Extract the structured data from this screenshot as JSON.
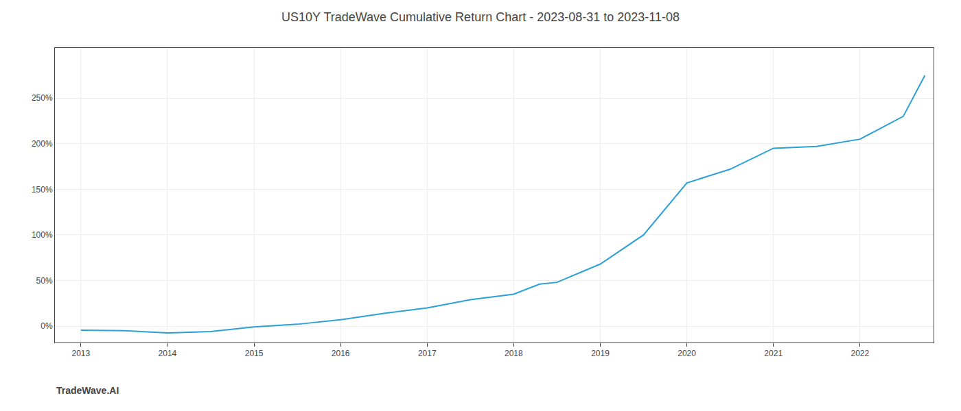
{
  "chart_data": {
    "type": "line",
    "title": "US10Y TradeWave Cumulative Return Chart - 2023-08-31 to 2023-11-08",
    "annotations": [
      "TradeWave.AI"
    ],
    "x": [
      2013.0,
      2013.5,
      2014.0,
      2014.5,
      2015.0,
      2015.5,
      2016.0,
      2016.5,
      2017.0,
      2017.5,
      2018.0,
      2018.3,
      2018.5,
      2019.0,
      2019.5,
      2020.0,
      2020.5,
      2021.0,
      2021.5,
      2022.0,
      2022.5,
      2022.75
    ],
    "values": [
      -0.045,
      -0.05,
      -0.075,
      -0.06,
      -0.01,
      0.02,
      0.07,
      0.14,
      0.2,
      0.29,
      0.35,
      0.46,
      0.48,
      0.68,
      1.0,
      1.57,
      1.72,
      1.95,
      1.97,
      2.05,
      2.3,
      2.75
    ],
    "color": "#2b9fd8",
    "xlim": [
      2012.7,
      2022.85
    ],
    "xticks": [
      2013,
      2014,
      2015,
      2016,
      2017,
      2018,
      2019,
      2020,
      2021,
      2022
    ],
    "ylim": [
      -0.18,
      3.05
    ],
    "yticks": [
      {
        "value": 0.0,
        "label": "0%"
      },
      {
        "value": 0.5,
        "label": "50%"
      },
      {
        "value": 1.0,
        "label": "100%"
      },
      {
        "value": 1.5,
        "label": "150%"
      },
      {
        "value": 2.0,
        "label": "200%"
      },
      {
        "value": 2.5,
        "label": "250%"
      }
    ],
    "grid": true
  }
}
